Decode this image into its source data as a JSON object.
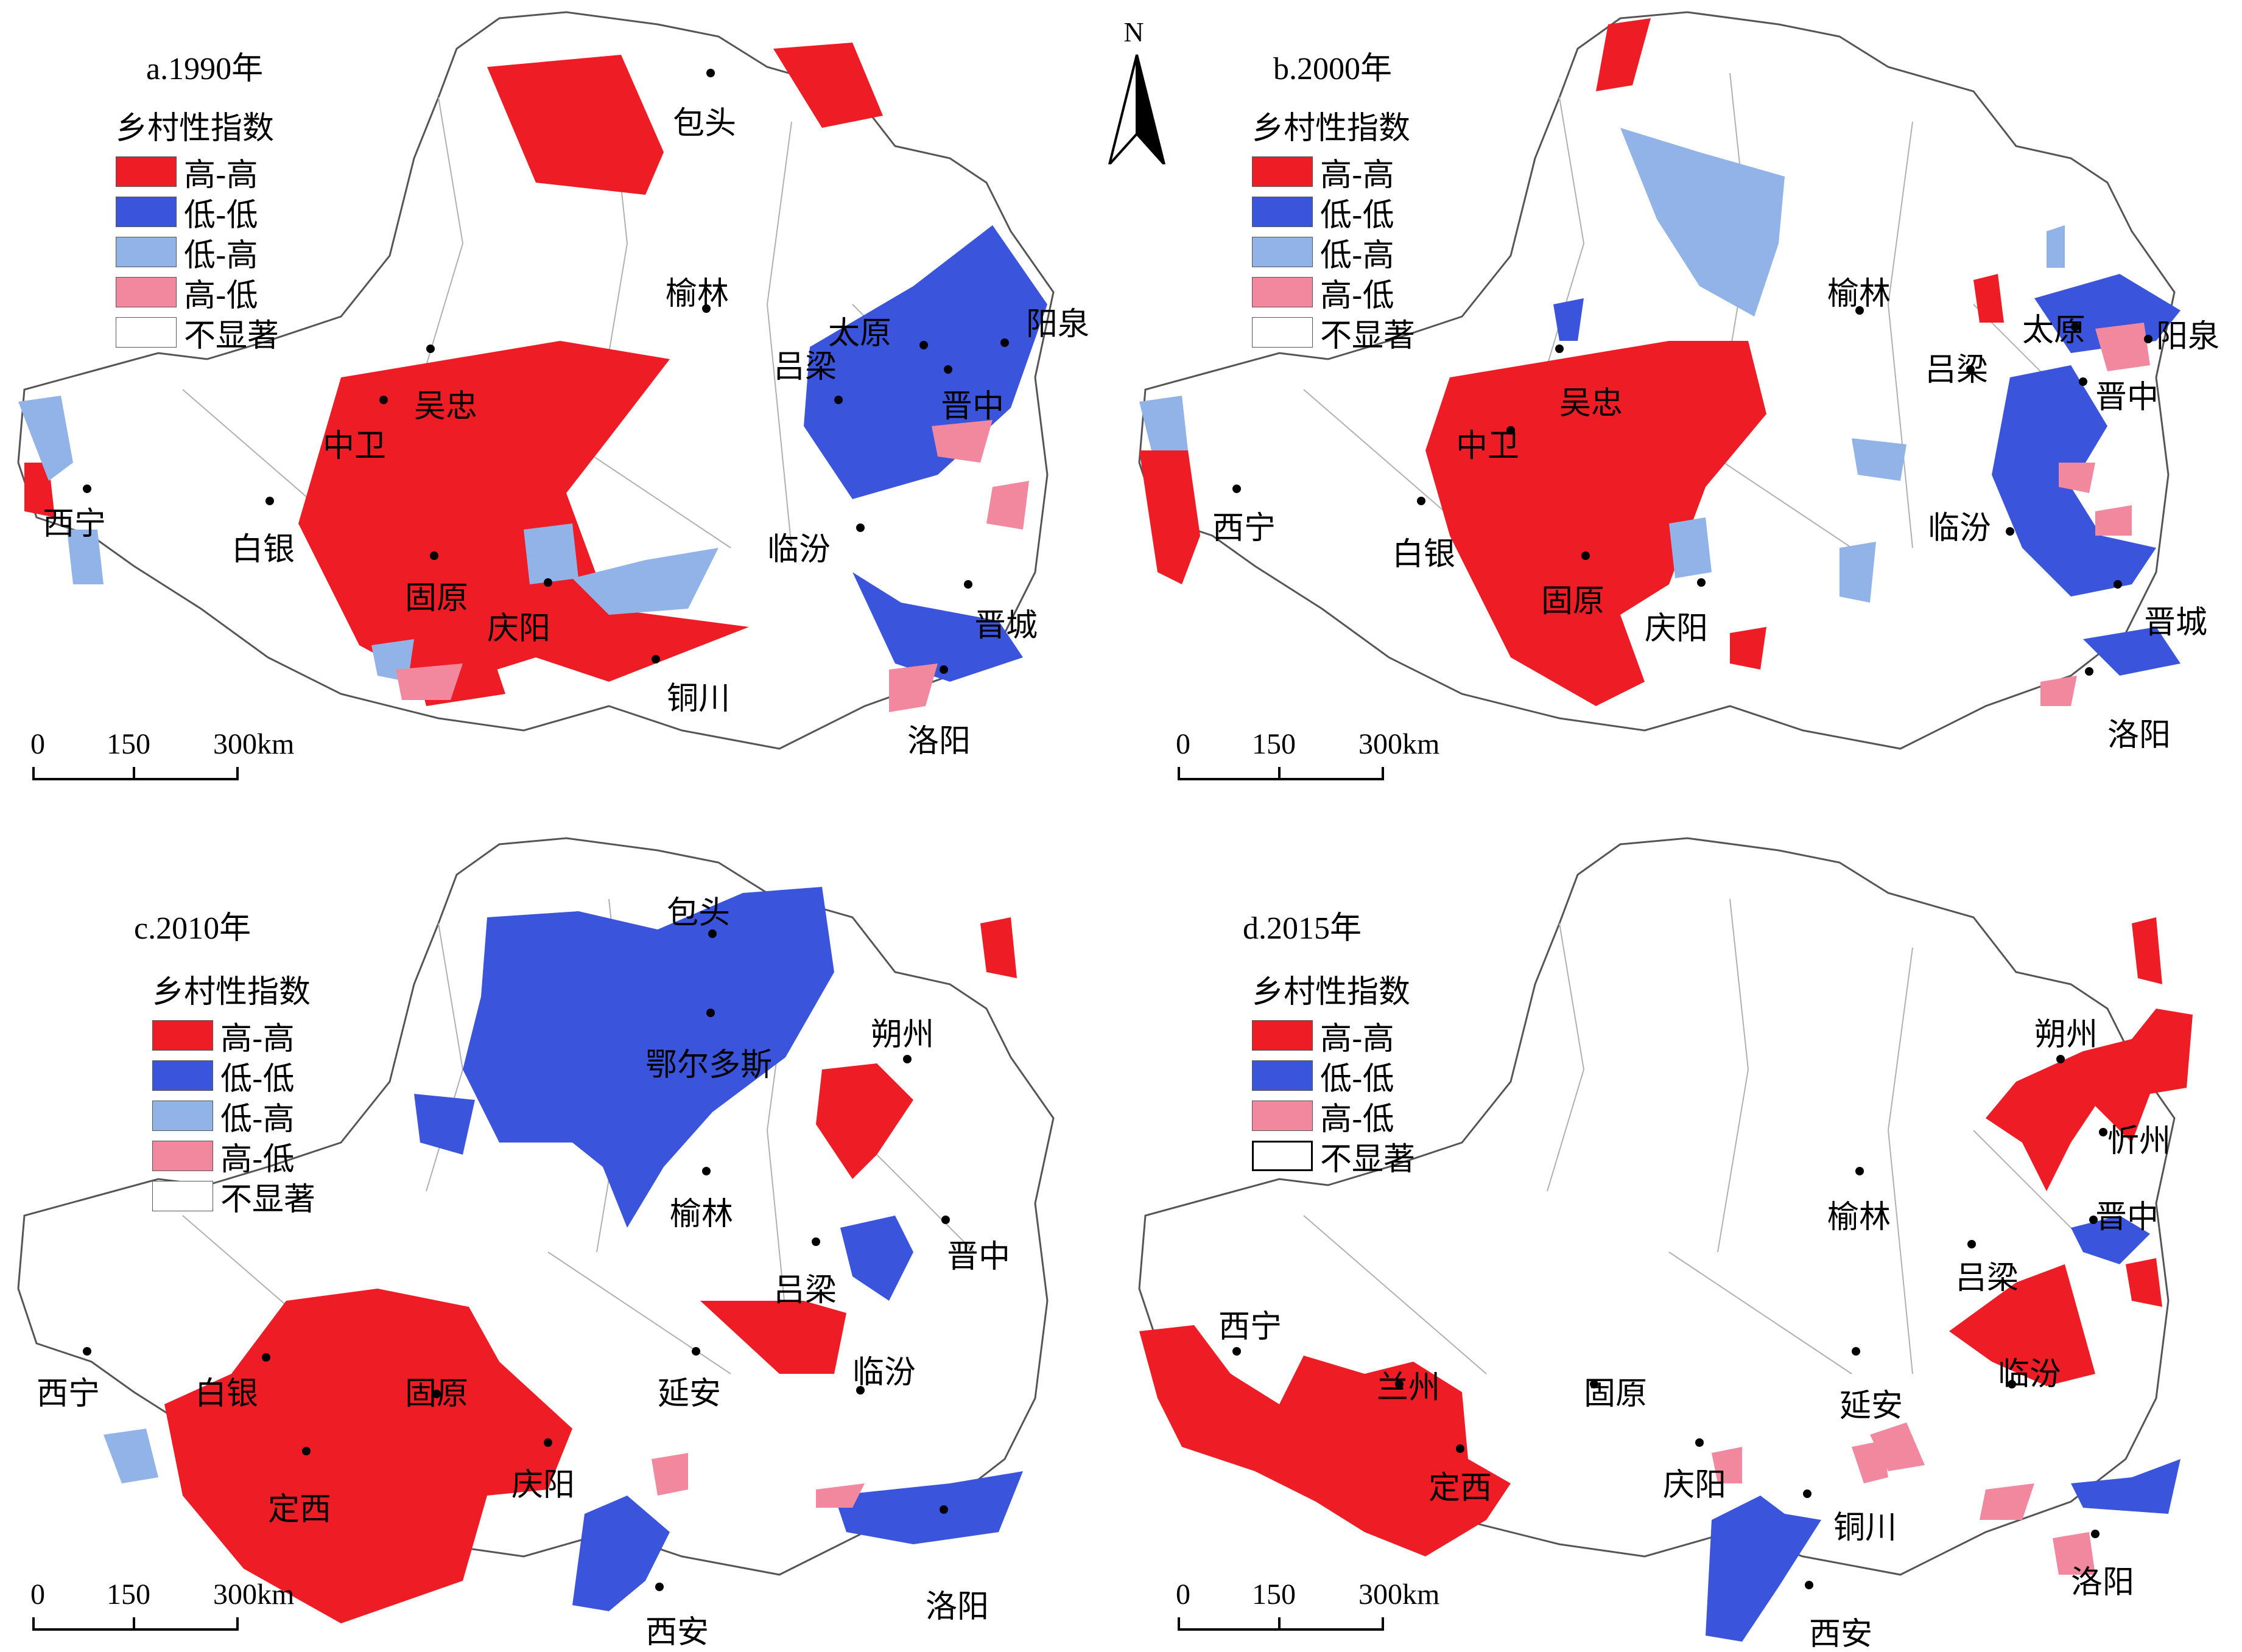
{
  "colors": {
    "high_high": "#ee1c25",
    "low_low": "#3a55dc",
    "low_high": "#92b3e8",
    "high_low": "#f2889e",
    "not_significant": "#ffffff",
    "boundary": "#9a9a9a",
    "city_dot": "#000000"
  },
  "north_label": "N",
  "panels": [
    {
      "title": "a.1990年",
      "legend_title": "乡村性指数",
      "legend": [
        {
          "key": "high_high",
          "label": "高-高"
        },
        {
          "key": "low_low",
          "label": "低-低"
        },
        {
          "key": "low_high",
          "label": "低-高"
        },
        {
          "key": "high_low",
          "label": "高-低"
        },
        {
          "key": "not_significant",
          "label": "不显著"
        }
      ],
      "scale": [
        "0",
        "150",
        "300km"
      ],
      "cities": [
        "包头",
        "榆林",
        "太原",
        "阳泉",
        "吕梁",
        "晋中",
        "吴忠",
        "中卫",
        "西宁",
        "白银",
        "固原",
        "庆阳",
        "临汾",
        "晋城",
        "铜川",
        "洛阳"
      ]
    },
    {
      "title": "b.2000年",
      "legend_title": "乡村性指数",
      "legend": [
        {
          "key": "high_high",
          "label": "高-高"
        },
        {
          "key": "low_low",
          "label": "低-低"
        },
        {
          "key": "low_high",
          "label": "低-高"
        },
        {
          "key": "high_low",
          "label": "高-低"
        },
        {
          "key": "not_significant",
          "label": "不显著"
        }
      ],
      "scale": [
        "0",
        "150",
        "300km"
      ],
      "cities": [
        "榆林",
        "太原",
        "阳泉",
        "吕梁",
        "晋中",
        "吴忠",
        "中卫",
        "西宁",
        "白银",
        "临汾",
        "固原",
        "庆阳",
        "晋城",
        "洛阳"
      ]
    },
    {
      "title": "c.2010年",
      "legend_title": "乡村性指数",
      "legend": [
        {
          "key": "high_high",
          "label": "高-高"
        },
        {
          "key": "low_low",
          "label": "低-低"
        },
        {
          "key": "low_high",
          "label": "低-高"
        },
        {
          "key": "high_low",
          "label": "高-低"
        },
        {
          "key": "not_significant",
          "label": "不显著"
        }
      ],
      "scale": [
        "0",
        "150",
        "300km"
      ],
      "cities": [
        "包头",
        "朔州",
        "鄂尔多斯",
        "榆林",
        "晋中",
        "吕梁",
        "西宁",
        "白银",
        "固原",
        "延安",
        "临汾",
        "定西",
        "庆阳",
        "洛阳",
        "西安"
      ]
    },
    {
      "title": "d.2015年",
      "legend_title": "乡村性指数",
      "legend": [
        {
          "key": "high_high",
          "label": "高-高"
        },
        {
          "key": "low_low",
          "label": "低-低"
        },
        {
          "key": "high_low",
          "label": "高-低"
        },
        {
          "key": "not_significant",
          "label": "不显著"
        }
      ],
      "scale": [
        "0",
        "150",
        "300km"
      ],
      "cities": [
        "朔州",
        "忻州",
        "榆林",
        "晋中",
        "吕梁",
        "西宁",
        "兰州",
        "固原",
        "延安",
        "临汾",
        "定西",
        "庆阳",
        "铜川",
        "洛阳",
        "西安"
      ]
    }
  ]
}
